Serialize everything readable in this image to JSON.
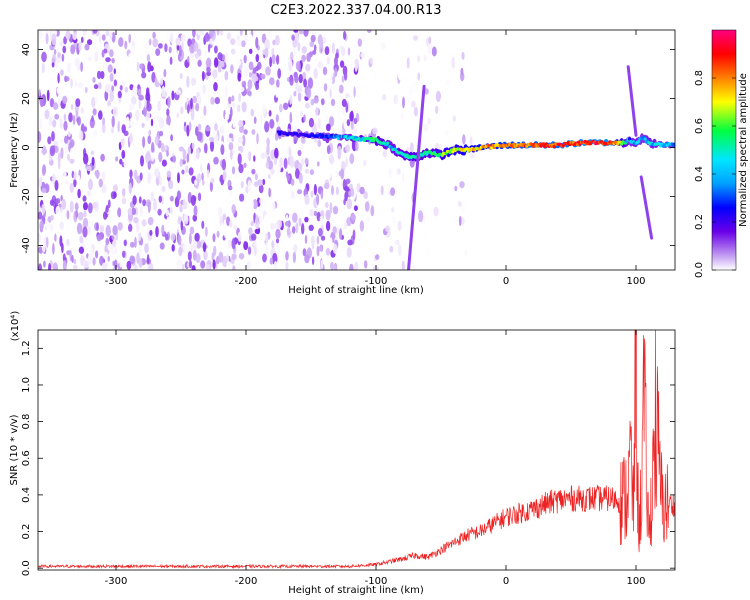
{
  "figure_title": "C2E3.2022.337.04.00.R13",
  "chart_data": [
    {
      "type": "heatmap",
      "xlabel": "Height of straight line (km)",
      "ylabel": "Frequency (Hz)",
      "xlim": [
        -360,
        130
      ],
      "ylim": [
        -50,
        48
      ],
      "x_ticks": [
        -300,
        -200,
        -100,
        0,
        100
      ],
      "x_tick_labels": [
        "-300",
        "-200",
        "-100",
        "0",
        "100"
      ],
      "y_ticks": [
        -40,
        -20,
        0,
        20,
        40
      ],
      "y_tick_labels": [
        "-40",
        "-20",
        "0",
        "20",
        "40"
      ],
      "colorbar": {
        "label": "Normalized spectral amplitude",
        "range": [
          0,
          1
        ],
        "ticks": [
          0.0,
          0.2,
          0.4,
          0.6,
          0.8
        ],
        "tick_labels": [
          "0.0",
          "0.2",
          "0.4",
          "0.6",
          "0.8"
        ],
        "colormap": [
          "#ffffff",
          "#b98cf0",
          "#6a00e8",
          "#0000ff",
          "#00e6ff",
          "#00ff40",
          "#ffff00",
          "#ff8000",
          "#ff0000",
          "#ff0080"
        ]
      },
      "ridge": {
        "x": [
          -175,
          -150,
          -120,
          -100,
          -90,
          -80,
          -70,
          -60,
          -50,
          -40,
          -30,
          -20,
          0,
          20,
          40,
          60,
          80,
          90,
          95,
          100,
          105,
          110,
          120,
          130
        ],
        "frequency": [
          6,
          5,
          4,
          3,
          1,
          -3,
          -4,
          -2,
          -3,
          -1,
          -1,
          0,
          1,
          1,
          1,
          2,
          2,
          2,
          3,
          2,
          4,
          2,
          1,
          1
        ],
        "peak_amplitude": [
          0.3,
          0.3,
          0.45,
          0.55,
          0.45,
          0.5,
          0.55,
          0.5,
          0.6,
          0.65,
          0.7,
          0.75,
          0.8,
          0.85,
          0.85,
          0.9,
          0.9,
          0.6,
          0.4,
          0.45,
          0.4,
          0.45,
          0.45,
          0.4
        ]
      },
      "streaks": [
        {
          "x_from": -75,
          "f_from": -50,
          "x_to": -63,
          "f_to": 25
        },
        {
          "x_from": 94,
          "f_from": 33,
          "x_to": 100,
          "f_to": 5
        },
        {
          "x_from": 104,
          "f_from": -12,
          "x_to": 112,
          "f_to": -37
        }
      ]
    },
    {
      "type": "line",
      "xlabel": "Height of straight line (km)",
      "ylabel": "SNR (10 * v/v)",
      "y_multiplier": "(x10⁴)",
      "xlim": [
        -360,
        130
      ],
      "ylim": [
        -0.01,
        1.3
      ],
      "x_ticks": [
        -300,
        -200,
        -100,
        0,
        100
      ],
      "x_tick_labels": [
        "-300",
        "-200",
        "-100",
        "0",
        "100"
      ],
      "y_ticks": [
        0.0,
        0.2,
        0.4,
        0.6,
        0.8,
        1.0,
        1.2
      ],
      "y_tick_labels": [
        "0.0",
        "0.2",
        "0.4",
        "0.6",
        "0.8",
        "1.0",
        "1.2"
      ],
      "series": [
        {
          "color": "#ee2222",
          "x": [
            -360,
            -300,
            -200,
            -120,
            -100,
            -80,
            -70,
            -60,
            -50,
            -40,
            -30,
            -20,
            -10,
            0,
            10,
            20,
            30,
            40,
            50,
            60,
            70,
            80,
            90,
            93,
            96,
            98,
            100,
            102,
            104,
            106,
            110,
            115,
            120,
            130
          ],
          "y": [
            0.01,
            0.01,
            0.01,
            0.01,
            0.02,
            0.05,
            0.07,
            0.06,
            0.1,
            0.14,
            0.18,
            0.2,
            0.24,
            0.28,
            0.3,
            0.32,
            0.35,
            0.37,
            0.38,
            0.38,
            0.38,
            0.38,
            0.37,
            0.4,
            0.6,
            0.3,
            1.28,
            0.15,
            0.42,
            0.9,
            0.15,
            0.82,
            0.35,
            0.35
          ]
        }
      ]
    }
  ]
}
